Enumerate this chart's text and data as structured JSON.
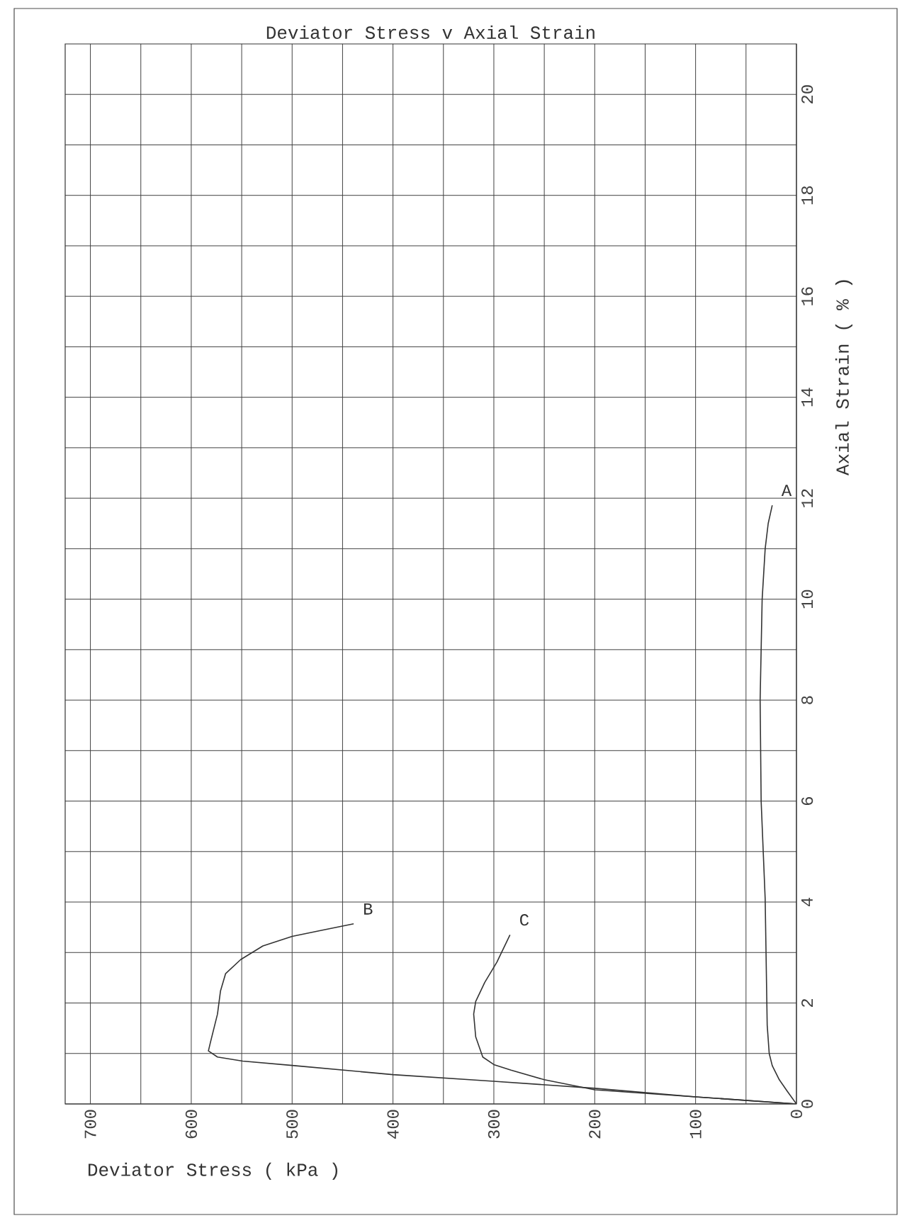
{
  "chart_data": {
    "type": "line",
    "title": "Deviator Stress v Axial Strain",
    "xlabel": "Deviator Stress ( kPa )",
    "ylabel": "Axial Strain ( % )",
    "xlim": [
      725,
      0
    ],
    "ylim": [
      0,
      21
    ],
    "xticks": [
      0,
      {
        "value": 50,
        "label": null
      },
      100,
      {
        "value": 150,
        "label": null
      },
      200,
      {
        "value": 250,
        "label": null
      },
      300,
      {
        "value": 350,
        "label": null
      },
      400,
      {
        "value": 450,
        "label": null
      },
      500,
      {
        "value": 550,
        "label": null
      },
      600,
      {
        "value": 650,
        "label": null
      },
      700
    ],
    "yticks": [
      0,
      {
        "value": 1,
        "label": null
      },
      2,
      {
        "value": 3,
        "label": null
      },
      4,
      {
        "value": 5,
        "label": null
      },
      6,
      {
        "value": 7,
        "label": null
      },
      8,
      {
        "value": 9,
        "label": null
      },
      10,
      {
        "value": 11,
        "label": null
      },
      12,
      {
        "value": 13,
        "label": null
      },
      14,
      {
        "value": 15,
        "label": null
      },
      16,
      {
        "value": 17,
        "label": null
      },
      18,
      {
        "value": 19,
        "label": null
      },
      20
    ],
    "grid": true,
    "marker": "none",
    "line_style": "solid",
    "series": [
      {
        "name": "A",
        "color": "#333333",
        "x": [
          0,
          9,
          17,
          24,
          27,
          29,
          31,
          35,
          36,
          35,
          34,
          31,
          28,
          24
        ],
        "values": [
          0,
          0.25,
          0.48,
          0.76,
          1.0,
          1.56,
          4.06,
          6,
          8,
          9,
          10,
          11,
          11.5,
          11.86
        ]
      },
      {
        "name": "B",
        "color": "#333333",
        "x": [
          0,
          100,
          200,
          300,
          400,
          498,
          549,
          574,
          583,
          581,
          574,
          571,
          566,
          551,
          529,
          500,
          471,
          439
        ],
        "values": [
          0,
          0.14,
          0.31,
          0.45,
          0.58,
          0.76,
          0.85,
          0.93,
          1.05,
          1.22,
          1.78,
          2.24,
          2.58,
          2.86,
          3.13,
          3.32,
          3.44,
          3.57
        ]
      },
      {
        "name": "C",
        "color": "#333333",
        "x": [
          0,
          100,
          200,
          250,
          283,
          300,
          311,
          318,
          320,
          318,
          309,
          297,
          284
        ],
        "values": [
          0,
          0.14,
          0.28,
          0.48,
          0.67,
          0.78,
          0.93,
          1.33,
          1.78,
          2.03,
          2.41,
          2.81,
          3.35
        ]
      }
    ]
  }
}
